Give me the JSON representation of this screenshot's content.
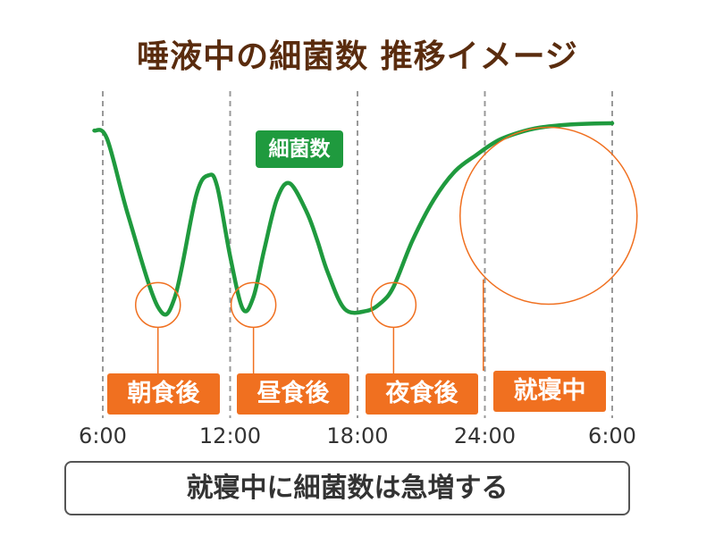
{
  "title": "唾液中の細菌数 推移イメージ",
  "caption": "就寝中に細菌数は急増する",
  "colors": {
    "line": "#1f9a3e",
    "marker": "#f07020",
    "title": "#5a2c0e",
    "grid": "#999999"
  },
  "chart_data": {
    "type": "line",
    "title": "唾液中の細菌数 推移イメージ",
    "xlabel": "",
    "ylabel": "",
    "x_tick_labels": [
      "6:00",
      "12:00",
      "18:00",
      "24:00",
      "6:00"
    ],
    "x_ticks_hours": [
      6,
      12,
      18,
      24,
      30
    ],
    "xlim": [
      6,
      30
    ],
    "ylim": [
      0,
      100
    ],
    "grid": "vertical dashed lines at ticks",
    "y_axis_shown": false,
    "series": [
      {
        "name": "細菌数",
        "x": [
          5.6,
          6.2,
          7.2,
          8.6,
          9.4,
          10.4,
          11.0,
          11.4,
          12.0,
          12.6,
          13.1,
          13.6,
          14.2,
          14.8,
          15.6,
          16.1,
          16.6,
          17.4,
          18.4,
          19.1,
          19.7,
          20.6,
          21.6,
          22.6,
          23.6,
          24.6,
          25.6,
          26.6,
          28.0,
          29.2,
          30.0
        ],
        "y": [
          92,
          88,
          50,
          5,
          10,
          60,
          70,
          64,
          30,
          4,
          10,
          33,
          58,
          66,
          52,
          38,
          22,
          4,
          3,
          7,
          15,
          38,
          58,
          72,
          80,
          87,
          91,
          93.5,
          95,
          95.5,
          95.6
        ]
      }
    ],
    "annotations": [
      {
        "label": "朝食後",
        "x": 8.6,
        "y": 6,
        "shape": "circle"
      },
      {
        "label": "昼食後",
        "x": 13.1,
        "y": 6,
        "shape": "circle"
      },
      {
        "label": "夜食後",
        "x": 19.7,
        "y": 6,
        "shape": "circle"
      },
      {
        "label": "就寝中",
        "x": 27.0,
        "y": 50,
        "shape": "large circle"
      }
    ]
  }
}
